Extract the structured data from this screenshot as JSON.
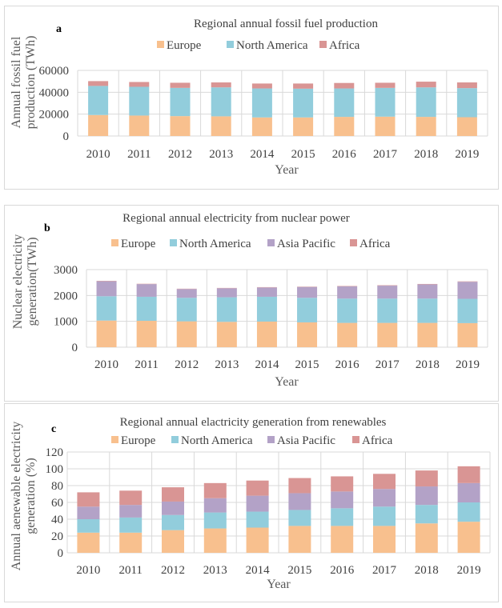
{
  "chart_data": [
    {
      "id": "a",
      "type": "bar",
      "stacked": true,
      "panel_label": "a",
      "title": "Regional annual fossil fuel production",
      "xlabel": "Year",
      "ylabel": "Annual fossil fuel production (TWh)",
      "ylim": [
        0,
        60000
      ],
      "yticks": [
        0,
        20000,
        40000,
        60000
      ],
      "grid": true,
      "legend_position": "top",
      "categories": [
        "2010",
        "2011",
        "2012",
        "2013",
        "2014",
        "2015",
        "2016",
        "2017",
        "2018",
        "2019"
      ],
      "series": [
        {
          "name": "Europe",
          "color": "#F8C08E",
          "values": [
            19200,
            18700,
            18200,
            18000,
            17000,
            17000,
            17500,
            17700,
            17500,
            17200
          ]
        },
        {
          "name": "North America",
          "color": "#92CDDC",
          "values": [
            26600,
            26300,
            25800,
            26500,
            26500,
            26300,
            26000,
            26300,
            27000,
            26600
          ]
        },
        {
          "name": "Africa",
          "color": "#D99594",
          "values": [
            4400,
            4400,
            4700,
            4500,
            4500,
            4700,
            5000,
            4700,
            5200,
            5200
          ]
        }
      ]
    },
    {
      "id": "b",
      "type": "bar",
      "stacked": true,
      "panel_label": "b",
      "title": "Regional annual electricity from nuclear power",
      "xlabel": "Year",
      "ylabel": "Nuclear electricity generation(TWh)",
      "ylim": [
        0,
        3000
      ],
      "yticks": [
        0,
        1000,
        2000,
        3000
      ],
      "grid": true,
      "legend_position": "top",
      "categories": [
        "2010",
        "2011",
        "2012",
        "2013",
        "2014",
        "2015",
        "2016",
        "2017",
        "2018",
        "2019"
      ],
      "series": [
        {
          "name": "Europe",
          "color": "#F8C08E",
          "values": [
            1030,
            1020,
            1000,
            980,
            990,
            960,
            940,
            940,
            940,
            930
          ]
        },
        {
          "name": "North America",
          "color": "#92CDDC",
          "values": [
            940,
            930,
            910,
            950,
            960,
            950,
            940,
            940,
            940,
            940
          ]
        },
        {
          "name": "Asia Pacific",
          "color": "#B3A2C7",
          "values": [
            580,
            490,
            340,
            350,
            360,
            420,
            470,
            500,
            550,
            660
          ]
        },
        {
          "name": "Africa",
          "color": "#D99594",
          "values": [
            15,
            12,
            12,
            12,
            12,
            12,
            15,
            15,
            15,
            15
          ]
        }
      ]
    },
    {
      "id": "c",
      "type": "bar",
      "stacked": true,
      "panel_label": "c",
      "title": "Regional annual elactricity generation from renewables",
      "xlabel": "Year",
      "ylabel": "Annual aenewable electricity generation (%)",
      "ylim": [
        0,
        120
      ],
      "yticks": [
        0,
        20,
        40,
        60,
        80,
        100,
        120
      ],
      "grid": true,
      "legend_position": "top",
      "categories": [
        "2010",
        "2011",
        "2012",
        "2013",
        "2014",
        "2015",
        "2016",
        "2017",
        "2018",
        "2019"
      ],
      "series": [
        {
          "name": "Europe",
          "color": "#F8C08E",
          "values": [
            24,
            24,
            27,
            29,
            30,
            32,
            32,
            32,
            35,
            37
          ]
        },
        {
          "name": "North America",
          "color": "#92CDDC",
          "values": [
            16,
            18,
            18,
            19,
            19,
            19,
            21,
            23,
            22,
            23
          ]
        },
        {
          "name": "Asia Pacific",
          "color": "#B3A2C7",
          "values": [
            15,
            15,
            16,
            17,
            19,
            20,
            20,
            21,
            22,
            23
          ]
        },
        {
          "name": "Africa",
          "color": "#D99594",
          "values": [
            17,
            17,
            17,
            18,
            18,
            18,
            18,
            18,
            19,
            20
          ]
        }
      ]
    }
  ]
}
